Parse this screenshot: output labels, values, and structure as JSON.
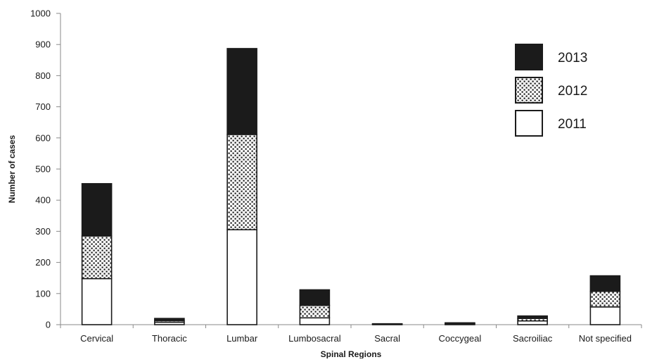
{
  "chart_data": {
    "type": "bar",
    "stacked": true,
    "title": "",
    "xlabel": "Spinal Regions",
    "ylabel": "Number of cases",
    "ylim": [
      0,
      1000
    ],
    "yticks": [
      0,
      100,
      200,
      300,
      400,
      500,
      600,
      700,
      800,
      900,
      1000
    ],
    "yticks_text": [
      "0",
      "100",
      "200",
      "300",
      "400",
      "500",
      "600",
      "700",
      "800",
      "900",
      "1000"
    ],
    "grid": false,
    "legend_position": "top-right",
    "categories": [
      "Cervical",
      "Thoracic",
      "Lumbar",
      "Lumbosacral",
      "Sacral",
      "Coccygeal",
      "Sacroiliac",
      "Not specified"
    ],
    "series": [
      {
        "name": "2011",
        "fill": "plain",
        "values": [
          148,
          8,
          305,
          22,
          1,
          2,
          12,
          57
        ]
      },
      {
        "name": "2012",
        "fill": "dotted",
        "values": [
          137,
          5,
          306,
          40,
          1,
          2,
          8,
          50
        ]
      },
      {
        "name": "2013",
        "fill": "solid",
        "values": [
          168,
          7,
          276,
          50,
          1,
          2,
          8,
          50
        ]
      }
    ],
    "legend_order": [
      "2013",
      "2012",
      "2011"
    ],
    "colors": {
      "solid": "#1b1b1b",
      "outline": "#1b1b1b",
      "plain": "#ffffff"
    }
  }
}
